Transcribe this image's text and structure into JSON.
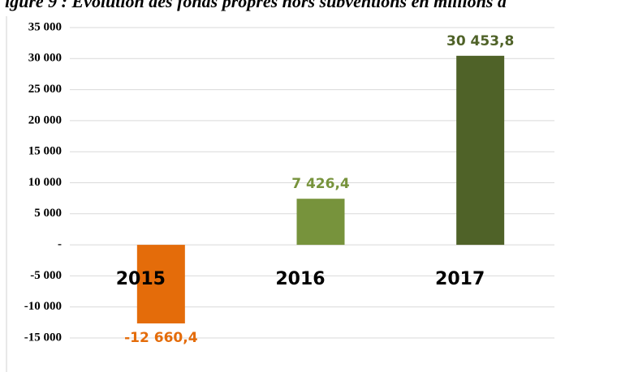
{
  "chart_data": {
    "type": "bar",
    "title": "igure 9 : Evolution des fonds propres hors subventions en millions d",
    "categories": [
      "2015",
      "2016",
      "2017"
    ],
    "values": [
      -12660.4,
      7426.4,
      30453.8
    ],
    "value_labels": [
      "-12 660,4",
      "7 426,4",
      "30 453,8"
    ],
    "colors": [
      "#e46c0a",
      "#77933c",
      "#4f6228"
    ],
    "ylim": [
      -15000,
      35000
    ],
    "yticks": [
      {
        "value": -15000,
        "label": "-15 000"
      },
      {
        "value": -10000,
        "label": "-10 000"
      },
      {
        "value": -5000,
        "label": "-5 000"
      },
      {
        "value": 0,
        "label": "-"
      },
      {
        "value": 5000,
        "label": "5 000"
      },
      {
        "value": 10000,
        "label": "10 000"
      },
      {
        "value": 15000,
        "label": "15 000"
      },
      {
        "value": 20000,
        "label": "20 000"
      },
      {
        "value": 25000,
        "label": "25 000"
      },
      {
        "value": 30000,
        "label": "30 000"
      },
      {
        "value": 35000,
        "label": "35 000"
      }
    ],
    "grid": true
  }
}
